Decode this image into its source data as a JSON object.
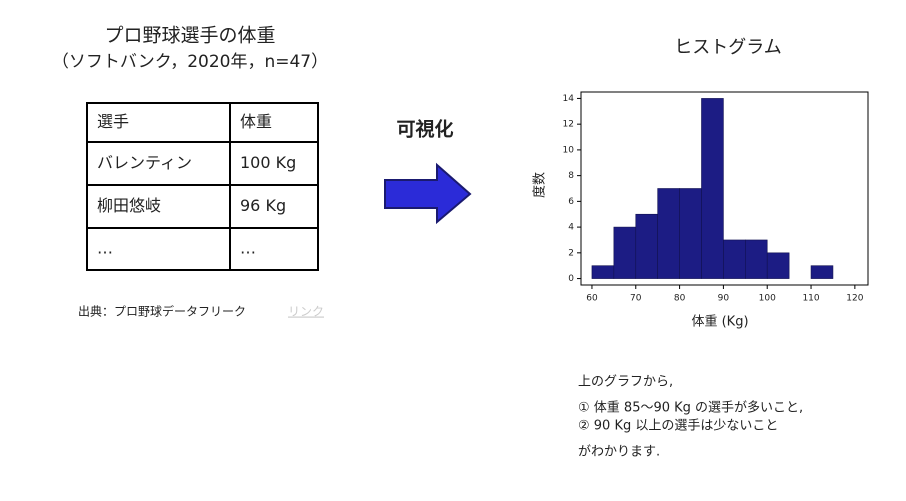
{
  "title": "プロ野球選手の体重",
  "subtitle": "（ソフトバンク，2020年，n=47）",
  "table": {
    "rows": [
      [
        "選手",
        "体重"
      ],
      [
        "バレンティン",
        "100 Kg"
      ],
      [
        "柳田悠岐",
        "96 Kg"
      ],
      [
        "…",
        "…"
      ]
    ]
  },
  "source": {
    "text": "出典：プロ野球データフリーク",
    "link": "リンク"
  },
  "arrow_label": "可視化",
  "chart_data": {
    "type": "histogram",
    "title": "ヒストグラム",
    "bins": [
      60,
      65,
      70,
      75,
      80,
      85,
      90,
      95,
      100,
      105,
      110,
      115
    ],
    "counts": [
      1,
      4,
      5,
      7,
      7,
      14,
      3,
      3,
      2,
      0,
      1
    ],
    "color": "#1c1c84",
    "xlabel": "体重 (Kg)",
    "ylabel": "度数",
    "xlim": [
      57.5,
      123
    ],
    "ylim": [
      -0.5,
      14.5
    ],
    "xticks": [
      60,
      70,
      80,
      90,
      100,
      110,
      120
    ],
    "yticks": [
      0,
      2,
      4,
      6,
      8,
      10,
      12,
      14
    ]
  },
  "notes": [
    "上のグラフから,",
    "① 体重 85〜90 Kg の選手が多いこと,",
    "② 90 Kg 以上の選手は少ないこと",
    "がわかります."
  ]
}
